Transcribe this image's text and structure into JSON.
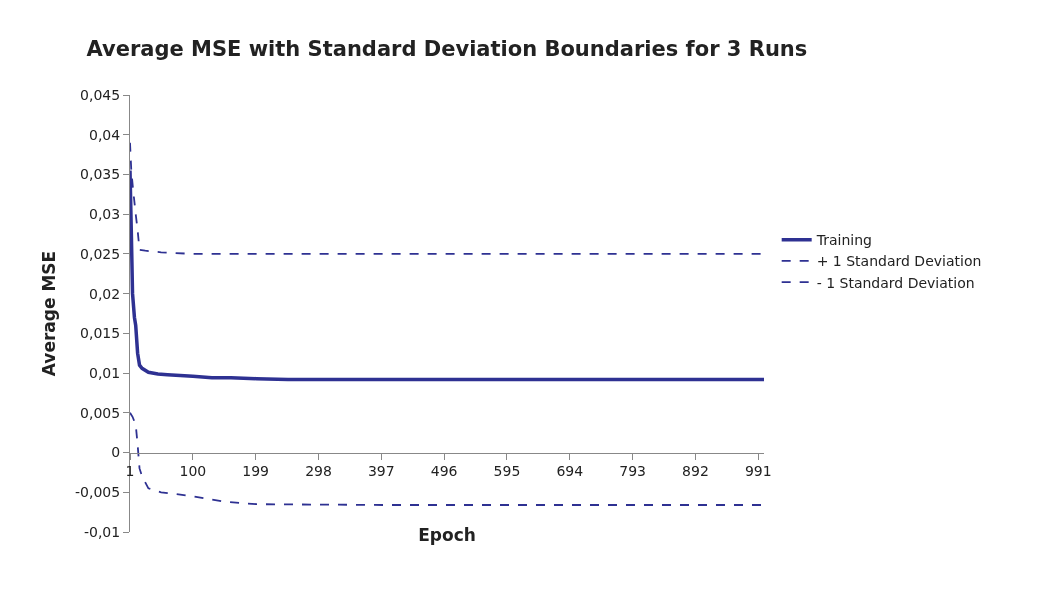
{
  "chart_data": {
    "type": "line",
    "title": "Average MSE with Standard Deviation Boundaries for 3 Runs",
    "xlabel": "Epoch",
    "ylabel": "Average MSE",
    "series": [
      {
        "name": "Training",
        "color": "#2e3192",
        "line_style": "solid",
        "x": [
          1,
          3,
          5,
          8,
          10,
          13,
          16,
          20,
          30,
          45,
          60,
          80,
          100,
          130,
          160,
          200,
          250,
          400,
          600,
          800,
          1000
        ],
        "values": [
          0.0355,
          0.028,
          0.02,
          0.017,
          0.016,
          0.0125,
          0.011,
          0.0106,
          0.0101,
          0.0099,
          0.0098,
          0.0097,
          0.0096,
          0.0094,
          0.0094,
          0.0093,
          0.0092,
          0.0092,
          0.0092,
          0.0092,
          0.0092
        ]
      },
      {
        "name": "+ 1 Standard Deviation",
        "color": "#2e3192",
        "line_style": "dashed",
        "x": [
          1,
          3,
          6,
          10,
          13,
          16,
          25,
          50,
          100,
          200,
          400,
          600,
          800,
          1000
        ],
        "values": [
          0.039,
          0.0355,
          0.033,
          0.03,
          0.028,
          0.0255,
          0.0254,
          0.0252,
          0.025,
          0.025,
          0.025,
          0.025,
          0.025,
          0.025
        ]
      },
      {
        "name": "- 1 Standard Deviation",
        "color": "#2e3192",
        "line_style": "dashed",
        "x": [
          1,
          5,
          10,
          13,
          16,
          20,
          30,
          50,
          100,
          150,
          200,
          400,
          600,
          800,
          1000
        ],
        "values": [
          0.005,
          0.0045,
          0.0035,
          0.001,
          -0.002,
          -0.003,
          -0.0045,
          -0.005,
          -0.0055,
          -0.0062,
          -0.0065,
          -0.0066,
          -0.0066,
          -0.0066,
          -0.0066
        ]
      }
    ],
    "xlim": [
      1,
      1000
    ],
    "xticks": [
      1,
      100,
      199,
      298,
      397,
      496,
      595,
      694,
      793,
      892,
      991
    ],
    "ylim": [
      -0.01,
      0.045
    ],
    "yticks": [
      {
        "value": -0.01,
        "label": "-0,01"
      },
      {
        "value": -0.005,
        "label": "-0,005"
      },
      {
        "value": 0,
        "label": "0"
      },
      {
        "value": 0.005,
        "label": "0,005"
      },
      {
        "value": 0.01,
        "label": "0,01"
      },
      {
        "value": 0.015,
        "label": "0,015"
      },
      {
        "value": 0.02,
        "label": "0,02"
      },
      {
        "value": 0.025,
        "label": "0,025"
      },
      {
        "value": 0.03,
        "label": "0,03"
      },
      {
        "value": 0.035,
        "label": "0,035"
      },
      {
        "value": 0.04,
        "label": "0,04"
      },
      {
        "value": 0.045,
        "label": "0,045"
      }
    ],
    "legend": "right",
    "marker": "none"
  }
}
